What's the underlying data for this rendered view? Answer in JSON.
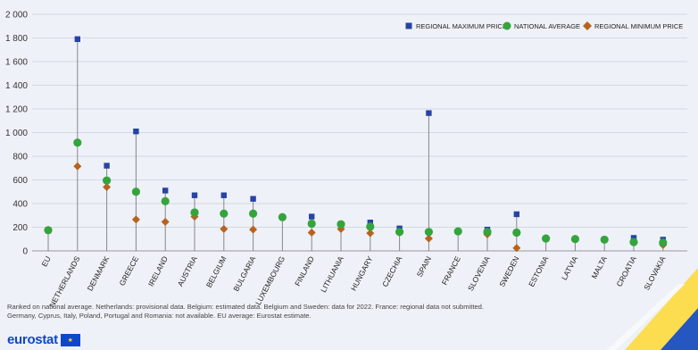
{
  "chart_data": {
    "type": "scatter",
    "title": "",
    "xlabel": "",
    "ylabel": "",
    "ylim": [
      0,
      2000
    ],
    "yticks": [
      0,
      200,
      400,
      600,
      800,
      1000,
      1200,
      1400,
      1600,
      1800,
      2000
    ],
    "ytick_labels": [
      "0",
      "200",
      "400",
      "600",
      "800",
      "1 000",
      "1 200",
      "1 400",
      "1 600",
      "1 800",
      "2 000"
    ],
    "grid": "horizontal",
    "legend_position": "top-right",
    "categories": [
      "EU",
      "NETHERLANDS",
      "DENMARK",
      "GREECE",
      "IRELAND",
      "AUSTRIA",
      "BELGIUM",
      "BULGARIA",
      "LUXEMBOURG",
      "FINLAND",
      "LITHUANIA",
      "HUNGARY",
      "CZECHIA",
      "SPAIN",
      "FRANCE",
      "SLOVENIA",
      "SWEDEN",
      "ESTONIA",
      "LATVIA",
      "MALTA",
      "CROATIA",
      "SLOVAKIA"
    ],
    "series": [
      {
        "name": "REGIONAL MAXIMUM PRICE",
        "marker": "square",
        "color": "#2644a5",
        "values": [
          null,
          1790,
          720,
          1010,
          510,
          470,
          470,
          440,
          null,
          290,
          null,
          240,
          190,
          1165,
          null,
          180,
          310,
          null,
          null,
          null,
          110,
          95
        ]
      },
      {
        "name": "NATIONAL AVERAGE",
        "marker": "circle",
        "color": "#34a43c",
        "values": [
          175,
          915,
          595,
          500,
          420,
          325,
          315,
          315,
          285,
          230,
          225,
          205,
          160,
          160,
          165,
          160,
          155,
          105,
          100,
          95,
          75,
          70
        ]
      },
      {
        "name": "REGIONAL MINIMUM PRICE",
        "marker": "diamond",
        "color": "#b7631d",
        "values": [
          null,
          715,
          540,
          265,
          245,
          290,
          185,
          180,
          null,
          155,
          185,
          150,
          155,
          105,
          null,
          140,
          25,
          null,
          null,
          null,
          null,
          50
        ]
      }
    ]
  },
  "footnote": {
    "line1": "Ranked on national average. Netherlands: provisional data. Belgium: estimated data. Belgium and Sweden: data for 2022. France: regional data not submitted.",
    "line2": "Germany, Cyprus, Italy, Poland, Portugal and Romania: not available. EU average: Eurostat estimate."
  },
  "logo": {
    "text": "eurostat"
  },
  "colors": {
    "background": "#eef1f7",
    "grid": "#d4d8e2",
    "stem": "#888888",
    "brand_blue": "#0e47cb",
    "brand_yellow": "#ffd617"
  }
}
